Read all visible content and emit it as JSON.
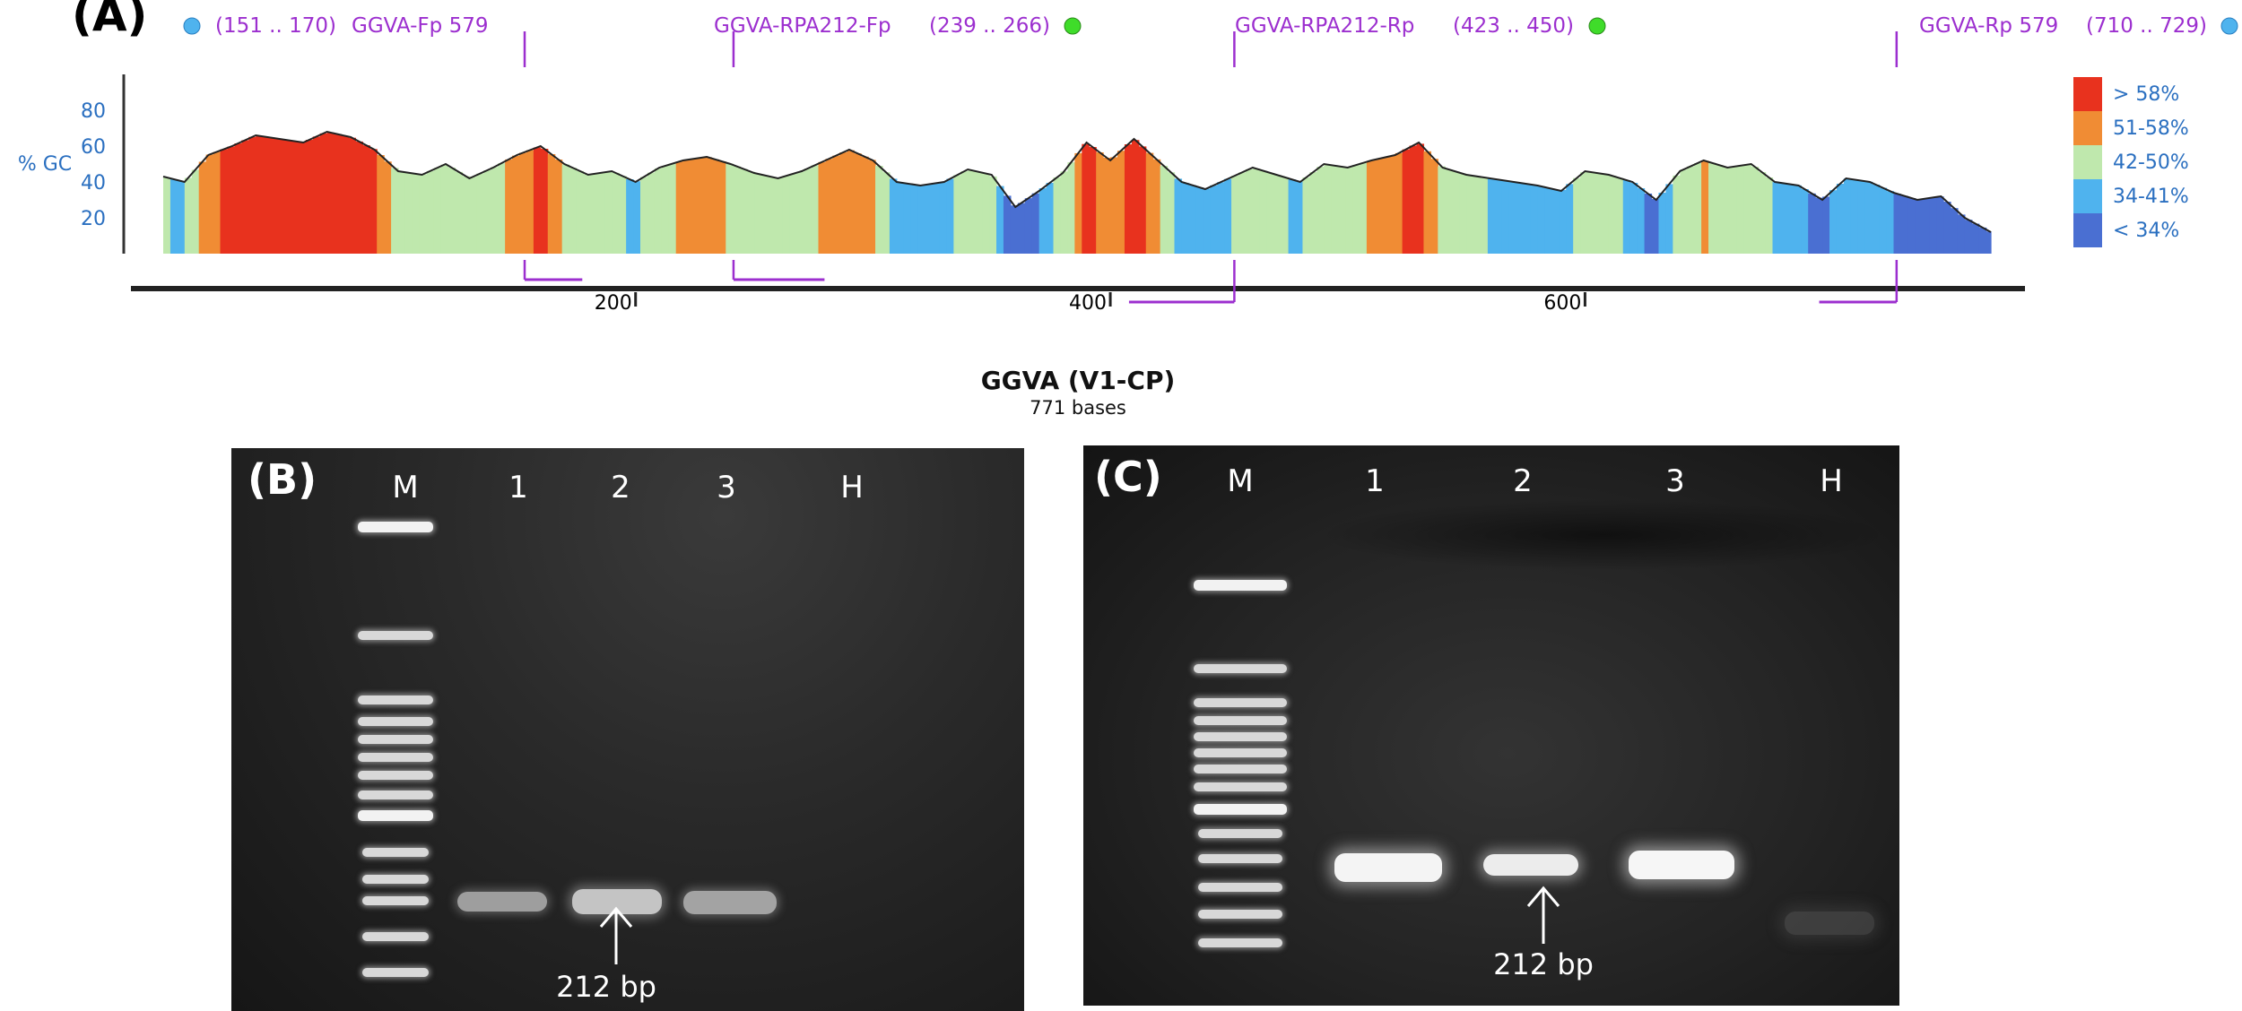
{
  "panel_a": {
    "label": "(A)",
    "ylabel": "% GC",
    "yticks": [
      "80",
      "60",
      "40",
      "20"
    ],
    "xticks": [
      "200",
      "400",
      "600"
    ],
    "xtick_values": [
      200,
      400,
      600
    ],
    "seq_length": 771,
    "title": "GGVA (V1-CP)",
    "subtitle": "771 bases",
    "primers": [
      {
        "name": "GGVA-Fp 579",
        "range": "(151 .. 170)",
        "start": 151,
        "end": 170,
        "strand": "forward",
        "dot": true,
        "dot_color": "#4fb3ee"
      },
      {
        "name": "GGVA-RPA212-Fp",
        "range": "(239 .. 266)",
        "start": 239,
        "end": 266,
        "strand": "forward",
        "dot": true,
        "dot_color": "#3fdc2a"
      },
      {
        "name": "GGVA-RPA212-Rp",
        "range": "(423 .. 450)",
        "start": 423,
        "end": 450,
        "strand": "reverse",
        "dot": true,
        "dot_color": "#3fdc2a"
      },
      {
        "name": "GGVA-Rp 579",
        "range": "(710 .. 729)",
        "start": 710,
        "end": 729,
        "strand": "reverse",
        "dot": true,
        "dot_color": "#4fb3ee"
      }
    ],
    "legend": [
      {
        "label": "> 58%",
        "color": "#e8321e"
      },
      {
        "label": "51-58%",
        "color": "#f08c34"
      },
      {
        "label": "42-50%",
        "color": "#bfe8ad"
      },
      {
        "label": "34-41%",
        "color": "#4fb3ee"
      },
      {
        "label": "< 34%",
        "color": "#4a6fd2"
      }
    ],
    "text_color": "#2a6fc0",
    "primer_color": "#9c2fcf"
  },
  "chart_data": {
    "type": "area",
    "xlabel": "",
    "ylabel": "% GC",
    "ylim": [
      0,
      100
    ],
    "xlim": [
      1,
      771
    ],
    "x": [
      1,
      10,
      20,
      30,
      40,
      50,
      60,
      70,
      80,
      90,
      100,
      110,
      120,
      130,
      140,
      150,
      160,
      170,
      180,
      190,
      200,
      210,
      220,
      230,
      240,
      250,
      260,
      270,
      280,
      290,
      300,
      310,
      320,
      330,
      340,
      350,
      360,
      370,
      380,
      390,
      400,
      410,
      420,
      430,
      440,
      450,
      460,
      470,
      480,
      490,
      500,
      510,
      520,
      530,
      540,
      550,
      560,
      570,
      580,
      590,
      600,
      610,
      620,
      630,
      640,
      650,
      660,
      670,
      680,
      690,
      700,
      710,
      720,
      730,
      740,
      750,
      760,
      771
    ],
    "y": [
      43,
      40,
      55,
      60,
      66,
      64,
      62,
      68,
      65,
      58,
      46,
      44,
      50,
      42,
      48,
      55,
      60,
      50,
      44,
      46,
      40,
      48,
      52,
      54,
      50,
      45,
      42,
      46,
      52,
      58,
      52,
      40,
      38,
      40,
      47,
      44,
      26,
      35,
      45,
      62,
      52,
      64,
      52,
      40,
      36,
      42,
      48,
      44,
      40,
      50,
      48,
      52,
      55,
      62,
      48,
      44,
      42,
      40,
      38,
      35,
      46,
      44,
      40,
      30,
      46,
      52,
      48,
      50,
      40,
      38,
      30,
      42,
      40,
      34,
      30,
      32,
      20,
      12
    ]
  },
  "panel_b": {
    "label": "(B)",
    "lanes": [
      "M",
      "1",
      "2",
      "3",
      "H"
    ],
    "band_label": "212 bp"
  },
  "panel_c": {
    "label": "(C)",
    "lanes": [
      "M",
      "1",
      "2",
      "3",
      "H"
    ],
    "band_label": "212 bp"
  }
}
